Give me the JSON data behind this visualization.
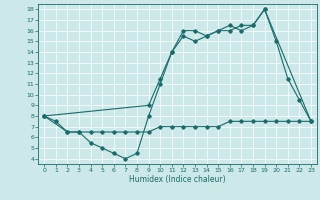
{
  "title": "",
  "xlabel": "Humidex (Indice chaleur)",
  "bg_color": "#cce8e8",
  "line_color": "#1a6b6b",
  "xlim": [
    -0.5,
    23.5
  ],
  "ylim": [
    3.5,
    18.5
  ],
  "xticks": [
    0,
    1,
    2,
    3,
    4,
    5,
    6,
    7,
    8,
    9,
    10,
    11,
    12,
    13,
    14,
    15,
    16,
    17,
    18,
    19,
    20,
    21,
    22,
    23
  ],
  "yticks": [
    4,
    5,
    6,
    7,
    8,
    9,
    10,
    11,
    12,
    13,
    14,
    15,
    16,
    17,
    18
  ],
  "series1_x": [
    0,
    1,
    2,
    3,
    4,
    5,
    6,
    7,
    8,
    9,
    10,
    11,
    12,
    13,
    14,
    15,
    16,
    17,
    18,
    19,
    20,
    21,
    22,
    23
  ],
  "series1_y": [
    8,
    7.5,
    6.5,
    6.5,
    5.5,
    5,
    4.5,
    4,
    4.5,
    8,
    11,
    14,
    16,
    16,
    15.5,
    16,
    16,
    16.5,
    16.5,
    18,
    15,
    11.5,
    9.5,
    7.5
  ],
  "series2_x": [
    0,
    2,
    3,
    4,
    5,
    6,
    7,
    8,
    9,
    10,
    11,
    12,
    13,
    14,
    15,
    16,
    17,
    18,
    19,
    20,
    21,
    22,
    23
  ],
  "series2_y": [
    8,
    6.5,
    6.5,
    6.5,
    6.5,
    6.5,
    6.5,
    6.5,
    6.5,
    7,
    7,
    7,
    7,
    7,
    7,
    7.5,
    7.5,
    7.5,
    7.5,
    7.5,
    7.5,
    7.5,
    7.5
  ],
  "series3_x": [
    0,
    9,
    10,
    11,
    12,
    13,
    14,
    15,
    16,
    17,
    18,
    19,
    23
  ],
  "series3_y": [
    8,
    9,
    11.5,
    14,
    15.5,
    15,
    15.5,
    16,
    16.5,
    16,
    16.5,
    18,
    7.5
  ]
}
